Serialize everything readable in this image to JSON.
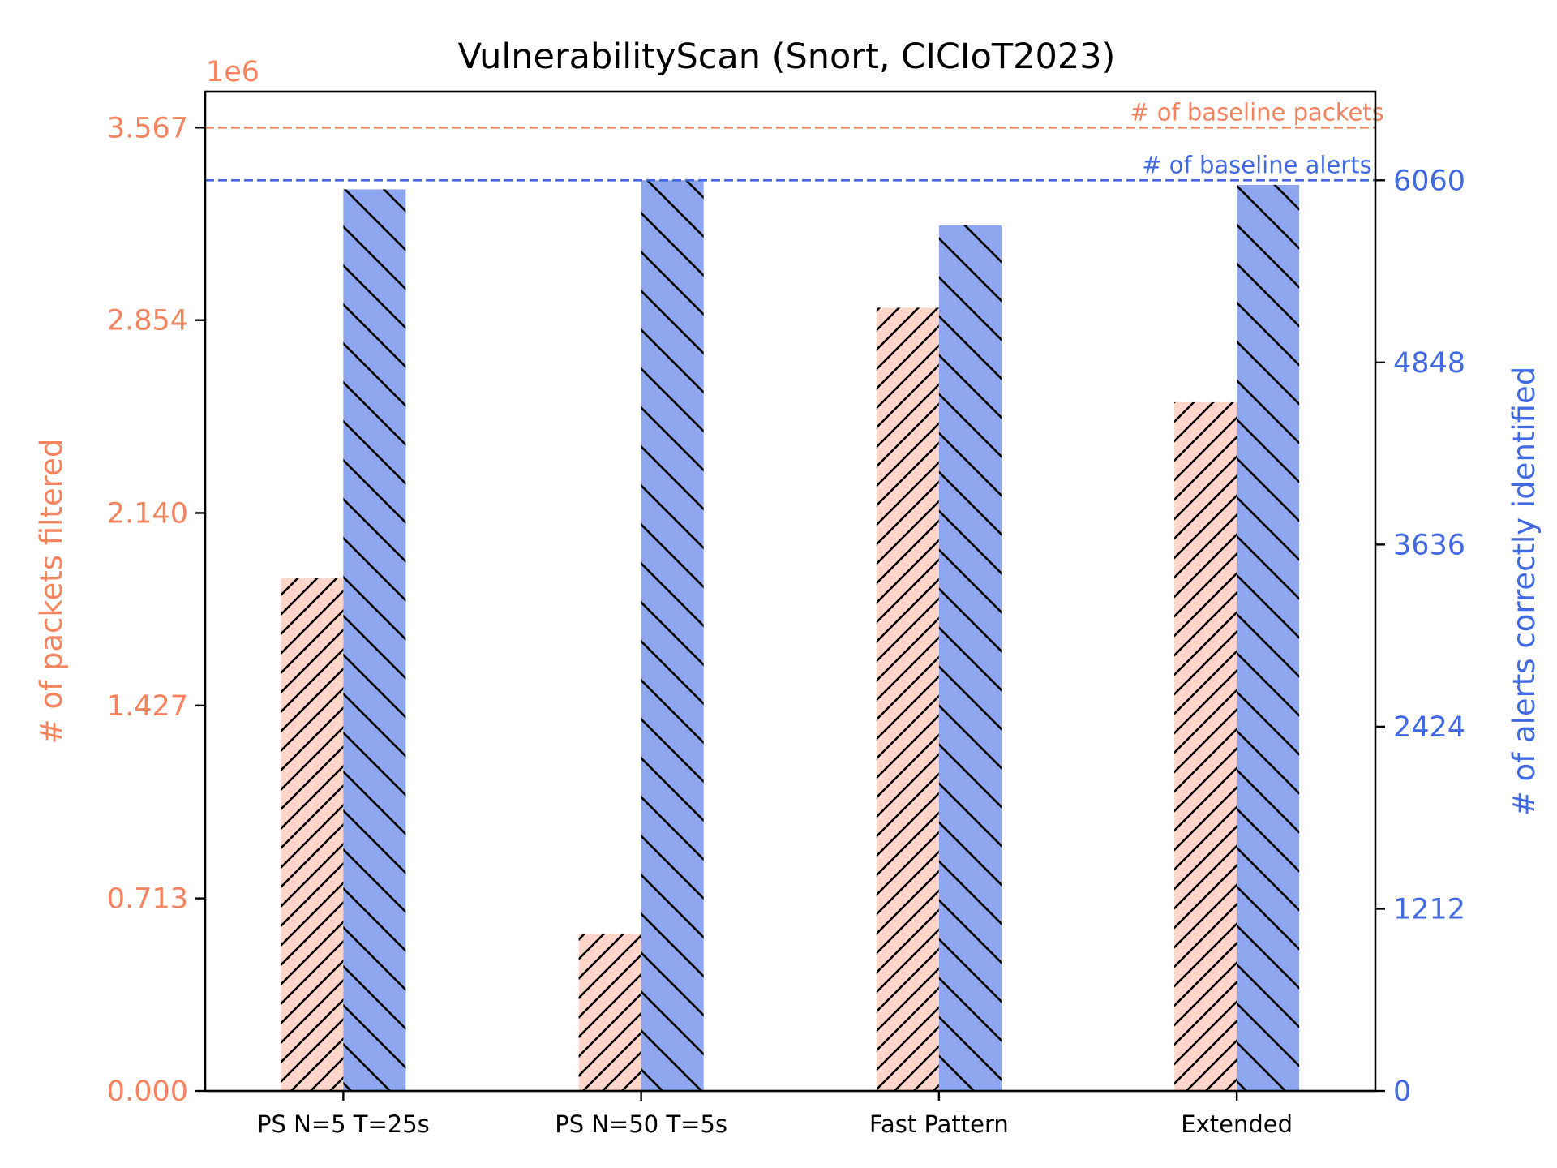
{
  "chart_data": {
    "type": "bar",
    "title": "VulnerabilityScan (Snort, CICIoT2023)",
    "categories": [
      "PS N=5 T=25s",
      "PS N=50 T=5s",
      "Fast Pattern",
      "Extended"
    ],
    "y_left": {
      "label": "# of packets filtered",
      "scale_note": "1e6",
      "ylim": [
        0,
        3.7
      ],
      "ticks": [
        "0.000",
        "0.713",
        "1.427",
        "2.140",
        "2.854",
        "3.567"
      ],
      "tick_values": [
        0,
        0.713,
        1.427,
        2.14,
        2.854,
        3.567
      ],
      "color": "#f4845f"
    },
    "y_right": {
      "label": "# of alerts correctly identified",
      "ylim": [
        0,
        6650
      ],
      "ticks": [
        "0",
        "1212",
        "2424",
        "3636",
        "4848",
        "6060"
      ],
      "tick_values": [
        0,
        1212,
        2424,
        3636,
        4848,
        6060
      ],
      "color": "#4169e1"
    },
    "series": [
      {
        "name": "# of packets filtered",
        "axis": "left",
        "values": [
          1.9,
          0.58,
          2.9,
          2.55
        ],
        "color": "#ffd6c9",
        "hatch": "forward"
      },
      {
        "name": "# of alerts correctly identified",
        "axis": "right",
        "values": [
          6000,
          6060,
          5760,
          6030
        ],
        "color": "#8da6ed",
        "hatch": "backward"
      }
    ],
    "baselines": [
      {
        "label": "# of baseline packets",
        "axis": "left",
        "value": 3.567,
        "color": "#f4845f"
      },
      {
        "label": "# of baseline alerts",
        "axis": "right",
        "value": 6060,
        "color": "#4169e1"
      }
    ],
    "grid": false
  }
}
